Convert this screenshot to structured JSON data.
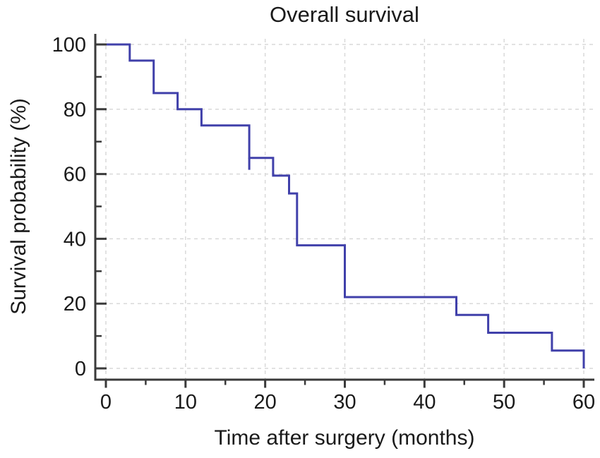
{
  "chart_data": {
    "type": "line",
    "subtype": "kaplan-meier-step-curve",
    "title": "Overall survival",
    "xlabel": "Time after surgery (months)",
    "ylabel": "Survival probability (%)",
    "xlim": [
      0,
      60
    ],
    "ylim": [
      0,
      100
    ],
    "x_major_ticks": [
      0,
      10,
      20,
      30,
      40,
      50,
      60
    ],
    "x_minor_ticks": [
      5,
      15,
      25,
      35,
      45,
      55
    ],
    "y_major_ticks": [
      0,
      20,
      40,
      60,
      80,
      100
    ],
    "y_minor_ticks": [
      10,
      30,
      50,
      70,
      90
    ],
    "grid": "dashed gridlines at major ticks, both axes",
    "legend_position": "none",
    "series": [
      {
        "name": "Overall survival",
        "step_points": [
          [
            0,
            100
          ],
          [
            3,
            100
          ],
          [
            3,
            95
          ],
          [
            6,
            95
          ],
          [
            6,
            85
          ],
          [
            9,
            85
          ],
          [
            9,
            80
          ],
          [
            12,
            80
          ],
          [
            12,
            75
          ],
          [
            18,
            75
          ],
          [
            18,
            65
          ],
          [
            21,
            65
          ],
          [
            21,
            59.5
          ],
          [
            23,
            59.5
          ],
          [
            23,
            54
          ],
          [
            24,
            54
          ],
          [
            24,
            38
          ],
          [
            30,
            38
          ],
          [
            30,
            22
          ],
          [
            44,
            22
          ],
          [
            44,
            16.5
          ],
          [
            48,
            16.5
          ],
          [
            48,
            11
          ],
          [
            56,
            11
          ],
          [
            56,
            5.5
          ],
          [
            60,
            5.5
          ],
          [
            60,
            0
          ]
        ],
        "censor_marks": [
          [
            18,
            65
          ]
        ]
      }
    ],
    "colors": {
      "line": "#4040aa",
      "grid": "#d9d9d9",
      "axis": "#3a3a3a",
      "text": "#1a1a1a",
      "background": "#ffffff"
    }
  }
}
